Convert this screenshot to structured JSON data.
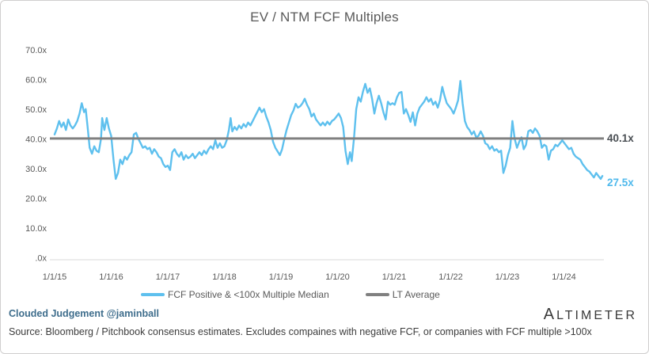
{
  "chart": {
    "title": "EV / NTM FCF Multiples",
    "legend": [
      {
        "label": "FCF Positive & <100x Multiple Median",
        "color": "#5ec0ee"
      },
      {
        "label": "LT Average",
        "color": "#808080"
      }
    ],
    "annotations": {
      "lt_average": "40.1x",
      "last_value": "27.5x",
      "lt_average_color": "#494e53",
      "last_value_color": "#4fb9ec"
    }
  },
  "chart_data": {
    "type": "line",
    "title": "EV / NTM FCF Multiples",
    "xlabel": "",
    "ylabel": "",
    "grid": false,
    "legend_position": "bottom",
    "x_unit": "decimal_year",
    "xlim": [
      2014.95,
      2024.95
    ],
    "ylim": [
      0,
      70
    ],
    "axis_color": "#d9d9d9",
    "y_ticks": [
      {
        "label": "70.0x",
        "value": 70
      },
      {
        "label": "60.0x",
        "value": 60
      },
      {
        "label": "50.0x",
        "value": 50
      },
      {
        "label": "40.0x",
        "value": 40
      },
      {
        "label": "30.0x",
        "value": 30
      },
      {
        "label": "20.0x",
        "value": 20
      },
      {
        "label": "10.0x",
        "value": 10
      },
      {
        "label": ".0x",
        "value": 0
      }
    ],
    "x_ticks": [
      {
        "label": "1/1/15",
        "value": 2015
      },
      {
        "label": "1/1/16",
        "value": 2016
      },
      {
        "label": "1/1/17",
        "value": 2017
      },
      {
        "label": "1/1/18",
        "value": 2018
      },
      {
        "label": "1/1/19",
        "value": 2019
      },
      {
        "label": "1/1/20",
        "value": 2020
      },
      {
        "label": "1/1/21",
        "value": 2021
      },
      {
        "label": "1/1/22",
        "value": 2022
      },
      {
        "label": "1/1/23",
        "value": 2023
      },
      {
        "label": "1/1/24",
        "value": 2024
      }
    ],
    "series": [
      {
        "name": "FCF Positive & <100x Multiple Median",
        "color": "#5ec0ee",
        "points": [
          [
            2015.0,
            41.5
          ],
          [
            2015.04,
            43.5
          ],
          [
            2015.08,
            46.0
          ],
          [
            2015.12,
            44.0
          ],
          [
            2015.16,
            45.5
          ],
          [
            2015.2,
            43.0
          ],
          [
            2015.24,
            46.5
          ],
          [
            2015.28,
            44.5
          ],
          [
            2015.32,
            43.5
          ],
          [
            2015.36,
            44.5
          ],
          [
            2015.4,
            46.0
          ],
          [
            2015.44,
            48.5
          ],
          [
            2015.48,
            52.0
          ],
          [
            2015.52,
            49.0
          ],
          [
            2015.55,
            50.0
          ],
          [
            2015.58,
            44.5
          ],
          [
            2015.62,
            37.0
          ],
          [
            2015.66,
            35.0
          ],
          [
            2015.7,
            37.5
          ],
          [
            2015.74,
            36.0
          ],
          [
            2015.78,
            35.5
          ],
          [
            2015.82,
            40.0
          ],
          [
            2015.84,
            47.0
          ],
          [
            2015.88,
            43.0
          ],
          [
            2015.92,
            47.0
          ],
          [
            2015.96,
            43.5
          ],
          [
            2016.0,
            41.0
          ],
          [
            2016.04,
            33.0
          ],
          [
            2016.08,
            26.5
          ],
          [
            2016.12,
            28.5
          ],
          [
            2016.16,
            33.0
          ],
          [
            2016.2,
            31.5
          ],
          [
            2016.24,
            34.0
          ],
          [
            2016.28,
            33.0
          ],
          [
            2016.32,
            34.5
          ],
          [
            2016.36,
            35.5
          ],
          [
            2016.4,
            41.5
          ],
          [
            2016.44,
            42.0
          ],
          [
            2016.48,
            40.0
          ],
          [
            2016.52,
            38.5
          ],
          [
            2016.56,
            37.0
          ],
          [
            2016.6,
            37.5
          ],
          [
            2016.64,
            36.5
          ],
          [
            2016.68,
            37.0
          ],
          [
            2016.72,
            35.0
          ],
          [
            2016.76,
            36.5
          ],
          [
            2016.8,
            35.5
          ],
          [
            2016.84,
            34.0
          ],
          [
            2016.88,
            33.5
          ],
          [
            2016.92,
            31.5
          ],
          [
            2016.96,
            30.5
          ],
          [
            2017.0,
            31.0
          ],
          [
            2017.04,
            29.5
          ],
          [
            2017.08,
            35.5
          ],
          [
            2017.12,
            36.5
          ],
          [
            2017.16,
            35.0
          ],
          [
            2017.2,
            34.0
          ],
          [
            2017.24,
            35.5
          ],
          [
            2017.28,
            33.0
          ],
          [
            2017.32,
            34.5
          ],
          [
            2017.36,
            33.5
          ],
          [
            2017.4,
            34.0
          ],
          [
            2017.44,
            35.0
          ],
          [
            2017.48,
            33.5
          ],
          [
            2017.52,
            34.5
          ],
          [
            2017.56,
            35.5
          ],
          [
            2017.6,
            34.5
          ],
          [
            2017.64,
            36.0
          ],
          [
            2017.68,
            35.0
          ],
          [
            2017.72,
            36.5
          ],
          [
            2017.76,
            37.5
          ],
          [
            2017.8,
            36.5
          ],
          [
            2017.84,
            39.5
          ],
          [
            2017.88,
            37.0
          ],
          [
            2017.92,
            38.5
          ],
          [
            2017.96,
            37.0
          ],
          [
            2018.0,
            37.5
          ],
          [
            2018.04,
            39.5
          ],
          [
            2018.08,
            43.0
          ],
          [
            2018.11,
            47.0
          ],
          [
            2018.14,
            42.5
          ],
          [
            2018.18,
            44.0
          ],
          [
            2018.22,
            43.0
          ],
          [
            2018.26,
            44.5
          ],
          [
            2018.3,
            43.5
          ],
          [
            2018.34,
            45.0
          ],
          [
            2018.38,
            44.0
          ],
          [
            2018.42,
            45.5
          ],
          [
            2018.46,
            44.5
          ],
          [
            2018.5,
            46.0
          ],
          [
            2018.54,
            47.5
          ],
          [
            2018.58,
            49.0
          ],
          [
            2018.62,
            50.5
          ],
          [
            2018.66,
            49.0
          ],
          [
            2018.7,
            50.0
          ],
          [
            2018.74,
            47.5
          ],
          [
            2018.78,
            45.5
          ],
          [
            2018.82,
            43.0
          ],
          [
            2018.86,
            39.0
          ],
          [
            2018.9,
            37.0
          ],
          [
            2018.94,
            35.8
          ],
          [
            2018.98,
            34.5
          ],
          [
            2019.02,
            36.5
          ],
          [
            2019.06,
            40.0
          ],
          [
            2019.1,
            43.0
          ],
          [
            2019.14,
            45.5
          ],
          [
            2019.18,
            48.0
          ],
          [
            2019.22,
            49.5
          ],
          [
            2019.26,
            51.8
          ],
          [
            2019.3,
            50.5
          ],
          [
            2019.34,
            51.0
          ],
          [
            2019.38,
            52.0
          ],
          [
            2019.42,
            53.5
          ],
          [
            2019.46,
            51.5
          ],
          [
            2019.5,
            50.0
          ],
          [
            2019.54,
            47.5
          ],
          [
            2019.58,
            48.5
          ],
          [
            2019.62,
            46.5
          ],
          [
            2019.66,
            45.5
          ],
          [
            2019.7,
            44.5
          ],
          [
            2019.74,
            45.5
          ],
          [
            2019.78,
            44.5
          ],
          [
            2019.82,
            45.8
          ],
          [
            2019.86,
            44.8
          ],
          [
            2019.9,
            46.0
          ],
          [
            2019.94,
            46.5
          ],
          [
            2019.98,
            47.5
          ],
          [
            2020.02,
            48.5
          ],
          [
            2020.06,
            47.0
          ],
          [
            2020.1,
            44.0
          ],
          [
            2020.14,
            36.0
          ],
          [
            2020.18,
            31.5
          ],
          [
            2020.22,
            35.5
          ],
          [
            2020.25,
            32.5
          ],
          [
            2020.29,
            40.0
          ],
          [
            2020.33,
            50.0
          ],
          [
            2020.37,
            54.0
          ],
          [
            2020.41,
            52.5
          ],
          [
            2020.45,
            56.0
          ],
          [
            2020.49,
            58.5
          ],
          [
            2020.53,
            55.5
          ],
          [
            2020.57,
            57.0
          ],
          [
            2020.61,
            53.5
          ],
          [
            2020.65,
            48.5
          ],
          [
            2020.69,
            52.0
          ],
          [
            2020.73,
            54.5
          ],
          [
            2020.77,
            52.0
          ],
          [
            2020.81,
            49.0
          ],
          [
            2020.85,
            46.5
          ],
          [
            2020.89,
            52.5
          ],
          [
            2020.93,
            51.5
          ],
          [
            2020.97,
            52.0
          ],
          [
            2021.01,
            51.5
          ],
          [
            2021.05,
            54.0
          ],
          [
            2021.09,
            55.5
          ],
          [
            2021.13,
            55.8
          ],
          [
            2021.17,
            48.5
          ],
          [
            2021.21,
            50.0
          ],
          [
            2021.25,
            48.0
          ],
          [
            2021.29,
            45.7
          ],
          [
            2021.33,
            48.9
          ],
          [
            2021.37,
            44.5
          ],
          [
            2021.41,
            48.5
          ],
          [
            2021.45,
            50.5
          ],
          [
            2021.49,
            51.5
          ],
          [
            2021.53,
            52.5
          ],
          [
            2021.57,
            54.0
          ],
          [
            2021.61,
            52.5
          ],
          [
            2021.65,
            53.5
          ],
          [
            2021.69,
            51.5
          ],
          [
            2021.73,
            52.5
          ],
          [
            2021.77,
            50.5
          ],
          [
            2021.81,
            53.0
          ],
          [
            2021.85,
            57.5
          ],
          [
            2021.89,
            54.5
          ],
          [
            2021.93,
            52.0
          ],
          [
            2021.97,
            51.0
          ],
          [
            2022.01,
            50.0
          ],
          [
            2022.05,
            48.5
          ],
          [
            2022.09,
            50.5
          ],
          [
            2022.13,
            53.0
          ],
          [
            2022.17,
            59.5
          ],
          [
            2022.21,
            52.0
          ],
          [
            2022.25,
            46.0
          ],
          [
            2022.29,
            44.0
          ],
          [
            2022.33,
            43.0
          ],
          [
            2022.37,
            41.5
          ],
          [
            2022.41,
            42.5
          ],
          [
            2022.45,
            40.5
          ],
          [
            2022.49,
            41.0
          ],
          [
            2022.53,
            42.5
          ],
          [
            2022.57,
            41.0
          ],
          [
            2022.61,
            38.5
          ],
          [
            2022.65,
            38.0
          ],
          [
            2022.69,
            36.5
          ],
          [
            2022.73,
            37.5
          ],
          [
            2022.77,
            36.0
          ],
          [
            2022.81,
            36.5
          ],
          [
            2022.85,
            35.5
          ],
          [
            2022.89,
            36.0
          ],
          [
            2022.93,
            28.5
          ],
          [
            2022.97,
            31.0
          ],
          [
            2023.01,
            34.5
          ],
          [
            2023.05,
            37.0
          ],
          [
            2023.09,
            46.0
          ],
          [
            2023.13,
            40.0
          ],
          [
            2023.17,
            37.0
          ],
          [
            2023.21,
            39.0
          ],
          [
            2023.25,
            40.5
          ],
          [
            2023.29,
            36.5
          ],
          [
            2023.33,
            38.0
          ],
          [
            2023.37,
            42.5
          ],
          [
            2023.41,
            43.0
          ],
          [
            2023.45,
            42.0
          ],
          [
            2023.49,
            43.5
          ],
          [
            2023.53,
            42.5
          ],
          [
            2023.57,
            41.0
          ],
          [
            2023.61,
            37.0
          ],
          [
            2023.65,
            38.0
          ],
          [
            2023.69,
            37.5
          ],
          [
            2023.73,
            33.0
          ],
          [
            2023.77,
            36.0
          ],
          [
            2023.81,
            36.5
          ],
          [
            2023.85,
            38.0
          ],
          [
            2023.89,
            37.5
          ],
          [
            2023.93,
            38.5
          ],
          [
            2023.97,
            39.5
          ],
          [
            2024.01,
            38.5
          ],
          [
            2024.05,
            37.5
          ],
          [
            2024.09,
            36.5
          ],
          [
            2024.13,
            37.0
          ],
          [
            2024.17,
            35.0
          ],
          [
            2024.21,
            34.0
          ],
          [
            2024.25,
            33.5
          ],
          [
            2024.29,
            33.0
          ],
          [
            2024.33,
            31.5
          ],
          [
            2024.37,
            30.5
          ],
          [
            2024.41,
            29.5
          ],
          [
            2024.45,
            29.0
          ],
          [
            2024.49,
            28.0
          ],
          [
            2024.53,
            27.0
          ],
          [
            2024.57,
            28.5
          ],
          [
            2024.61,
            27.5
          ],
          [
            2024.65,
            26.5
          ],
          [
            2024.68,
            27.5
          ]
        ]
      },
      {
        "name": "LT Average",
        "color": "#808080",
        "value": 40.1
      }
    ]
  },
  "footer": {
    "credit": "Clouded Judgement @jaminball",
    "source": "Source: Bloomberg / Pitchbook consensus estimates. Excludes compaines with negative FCF, or companies with FCF multiple >100x",
    "brand": "ALTIMETER"
  }
}
